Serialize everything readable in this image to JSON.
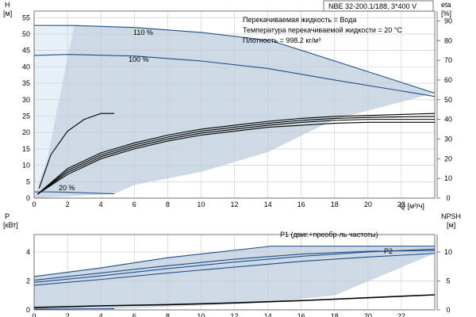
{
  "header_label": "NBE 32-200.1/188, 3*400 V",
  "notes": [
    "Перекачиваемая жидкость = Вода",
    "Температура перекачиваемой жидкости = 20 °C",
    "Плотность = 998.2 кг/м³"
  ],
  "colors": {
    "envelope": "#cdd9e5",
    "envelope_light": "#e6f0f8",
    "curve_blue": "#1f4e8c",
    "curve_black": "#000000",
    "grid": "#c8c8c8"
  },
  "chart_data": [
    {
      "type": "line",
      "xlabel": "Q [м³/ч]",
      "ylabel_left": [
        "H",
        "[м]"
      ],
      "ylabel_right": [
        "eta",
        "[%]"
      ],
      "xlim": [
        0,
        24
      ],
      "xticks": [
        0,
        2,
        4,
        6,
        8,
        10,
        12,
        14,
        16,
        18,
        20,
        22
      ],
      "ylim": [
        0,
        57
      ],
      "yticks": [
        0,
        5,
        10,
        15,
        20,
        25,
        30,
        35,
        40,
        45,
        50,
        55
      ],
      "y2lim": [
        0,
        95
      ],
      "y2ticks": [
        0,
        10,
        20,
        30,
        40,
        50,
        60,
        70,
        80,
        90
      ],
      "grid": true,
      "curve_labels": [
        "110 %",
        "100 %",
        "20 %"
      ],
      "series": [
        {
          "role": "H 110%",
          "axis": "left",
          "color": "blue",
          "x": [
            0,
            2.4,
            6,
            10,
            14.2,
            24
          ],
          "y": [
            52.6,
            52.6,
            52,
            50.5,
            48,
            32
          ]
        },
        {
          "role": "H 100%",
          "axis": "left",
          "color": "blue",
          "x": [
            0,
            2,
            6,
            10,
            14,
            18,
            24
          ],
          "y": [
            43.5,
            43.8,
            43.3,
            41.8,
            39.5,
            36,
            31
          ]
        },
        {
          "role": "H 20%",
          "axis": "left",
          "color": "blue",
          "x": [
            0,
            1,
            2,
            3,
            4.8
          ],
          "y": [
            1.9,
            1.9,
            1.8,
            1.6,
            1.3
          ]
        },
        {
          "role": "eta small",
          "axis": "right",
          "color": "black",
          "x": [
            0.3,
            1,
            2,
            3,
            4,
            4.8
          ],
          "y": [
            5,
            22,
            34,
            40,
            43,
            43
          ]
        },
        {
          "role": "eta 1",
          "axis": "right",
          "color": "black",
          "x": [
            0.2,
            2,
            4,
            6,
            8,
            10,
            12,
            14,
            16,
            18,
            20,
            22,
            24
          ],
          "y": [
            2,
            15,
            23,
            28,
            32,
            35,
            37,
            39,
            40.5,
            41.5,
            42,
            42.5,
            43
          ]
        },
        {
          "role": "eta 2",
          "axis": "right",
          "color": "black",
          "x": [
            0.2,
            2,
            4,
            6,
            8,
            10,
            12,
            14,
            16,
            18,
            20,
            22,
            24
          ],
          "y": [
            2,
            14,
            22,
            27,
            31,
            34,
            36,
            38,
            39.5,
            40.5,
            41,
            41.3,
            41.5
          ]
        },
        {
          "role": "eta 3",
          "axis": "right",
          "color": "black",
          "x": [
            0.2,
            2,
            4,
            6,
            8,
            10,
            12,
            14,
            16,
            18,
            20,
            22,
            24
          ],
          "y": [
            2,
            13,
            21,
            26,
            30,
            33,
            35,
            37,
            38.5,
            39.5,
            40,
            40,
            40
          ]
        },
        {
          "role": "eta 4",
          "axis": "right",
          "color": "black",
          "x": [
            0.2,
            2,
            4,
            6,
            8,
            10,
            12,
            14,
            16,
            18,
            20,
            22,
            24
          ],
          "y": [
            2,
            12,
            20,
            25,
            29,
            32,
            34,
            36,
            37,
            38,
            38.5,
            38.5,
            38.5
          ]
        }
      ]
    },
    {
      "type": "line",
      "xlim": [
        0,
        24
      ],
      "xticks": [
        0,
        2,
        4,
        6,
        8,
        10,
        12,
        14,
        16,
        18,
        20,
        22
      ],
      "ylabel_left": [
        "P",
        "[кВт]"
      ],
      "ylabel_right": [
        "NPSH",
        "[м]"
      ],
      "ylim": [
        0,
        5.2
      ],
      "yticks": [
        0,
        2,
        4
      ],
      "y2lim": [
        0,
        13
      ],
      "y2ticks": [
        0,
        5,
        10
      ],
      "grid": true,
      "legend_labels": [
        "P1 (двиг.+преобр-ль частоты)",
        "P2"
      ],
      "series": [
        {
          "role": "P1 110%",
          "axis": "left",
          "color": "blue",
          "x": [
            0,
            4,
            8,
            14.2,
            24
          ],
          "y": [
            2.3,
            2.9,
            3.6,
            4.4,
            4.4
          ]
        },
        {
          "role": "P1 100%",
          "axis": "left",
          "color": "blue",
          "x": [
            0,
            4,
            8,
            12,
            16,
            20,
            24
          ],
          "y": [
            2.05,
            2.55,
            3.05,
            3.5,
            3.85,
            4.05,
            4.1
          ]
        },
        {
          "role": "P2 110%",
          "axis": "left",
          "color": "blue",
          "x": [
            0,
            4,
            8,
            12,
            16,
            20,
            24
          ],
          "y": [
            1.9,
            2.35,
            2.85,
            3.3,
            3.7,
            4.0,
            4.2
          ]
        },
        {
          "role": "P2 100%",
          "axis": "left",
          "color": "blue",
          "x": [
            0,
            4,
            8,
            12,
            16,
            20,
            24
          ],
          "y": [
            1.7,
            2.1,
            2.55,
            2.95,
            3.35,
            3.65,
            3.9
          ]
        },
        {
          "role": "P 20%",
          "axis": "left",
          "color": "blue",
          "x": [
            0,
            4.8
          ],
          "y": [
            0.05,
            0.08
          ]
        },
        {
          "role": "NPSH",
          "axis": "right",
          "color": "black",
          "x": [
            0,
            4,
            8,
            12,
            16,
            20,
            24
          ],
          "y": [
            0.4,
            0.7,
            0.9,
            1.2,
            1.6,
            2.1,
            2.6
          ]
        }
      ]
    }
  ]
}
